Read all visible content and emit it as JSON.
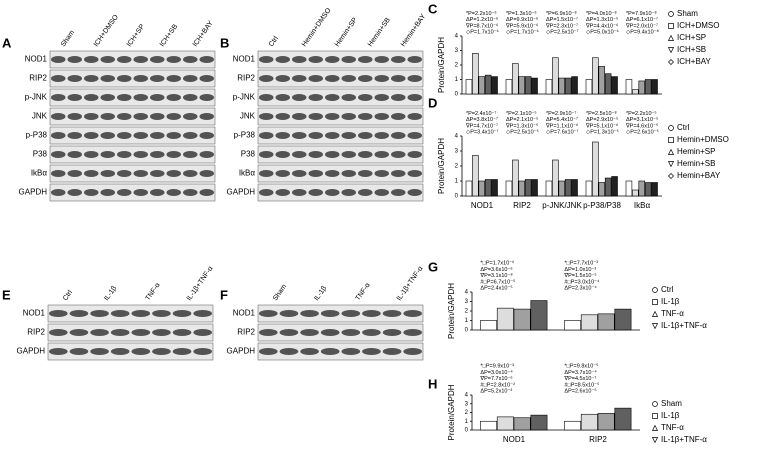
{
  "blots": [
    {
      "panel_label": "A",
      "lanes": [
        "Sham",
        "ICH+DMSO",
        "ICH+SP",
        "ICH+SB",
        "ICH+BAY"
      ],
      "rows": [
        "NOD1",
        "RIP2",
        "p-JNK",
        "JNK",
        "p-P38",
        "P38",
        "IkBα",
        "GAPDH"
      ]
    },
    {
      "panel_label": "B",
      "lanes": [
        "Ctrl",
        "Hemin+DMSO",
        "Hemin+SP",
        "Hemin+SB",
        "Hemin+BAY"
      ],
      "rows": [
        "NOD1",
        "RIP2",
        "p-JNK",
        "JNK",
        "p-P38",
        "P38",
        "IkBα",
        "GAPDH"
      ]
    },
    {
      "panel_label": "E",
      "lanes": [
        "Ctrl",
        "IL-1β",
        "TNF-α",
        "IL-1β+TNF-α"
      ],
      "rows": [
        "NOD1",
        "RIP2",
        "GAPDH"
      ]
    },
    {
      "panel_label": "F",
      "lanes": [
        "Sham",
        "IL-1β",
        "TNF-α",
        "IL-1β+TNF-α"
      ],
      "rows": [
        "NOD1",
        "RIP2",
        "GAPDH"
      ]
    }
  ],
  "chart_data": [
    {
      "type": "bar",
      "panel_label": "C",
      "y_label": "Protein/GAPDH",
      "categories": [
        null,
        null,
        null,
        null,
        null
      ],
      "ylim": [
        0,
        4
      ],
      "yticks": [
        0,
        1,
        2,
        3,
        4
      ],
      "series": [
        {
          "name": "Sham",
          "color": "#ffffff",
          "values": [
            1,
            1,
            1,
            1,
            1
          ]
        },
        {
          "name": "ICH+DMSO",
          "color": "#dddddd",
          "values": [
            2.8,
            2.1,
            2.5,
            2.5,
            0.3
          ]
        },
        {
          "name": "ICH+SP",
          "color": "#a0a0a0",
          "values": [
            1.2,
            1.2,
            1.1,
            1.9,
            0.9
          ]
        },
        {
          "name": "ICH+SB",
          "color": "#606060",
          "values": [
            1.3,
            1.2,
            1.1,
            1.4,
            1.0
          ]
        },
        {
          "name": "ICH+BAY",
          "color": "#202020",
          "values": [
            1.2,
            1.1,
            1.2,
            1.2,
            1.0
          ]
        }
      ],
      "annotations": [
        [
          "*P=2.2x10⁻⁶",
          "ΔP=1.2x10⁻⁶",
          "∇P=8.7x10⁻⁶",
          "◇P=1.7x10⁻⁶"
        ],
        [
          "*P=1.3x10⁻⁶",
          "ΔP=9.9x10⁻⁶",
          "∇P=5.9x10⁻⁶",
          "◇P=1.7x10⁻⁶"
        ],
        [
          "*P=6.9x10⁻⁸",
          "ΔP=1.5x10⁻⁷",
          "∇P=2.3x10⁻⁷",
          "◇P=2.5x10⁻⁷"
        ],
        [
          "*P=4.0x10⁻⁸",
          "ΔP=1.3x10⁻⁵",
          "∇P=4.4x10⁻⁶",
          "◇P=5.0x10⁻⁶"
        ],
        [
          "*P=7.9x10⁻⁸",
          "ΔP=6.1x10⁻⁷",
          "∇P=2.0x10⁻⁷",
          "◇P=9.4x10⁻⁸"
        ]
      ]
    },
    {
      "type": "bar",
      "panel_label": "D",
      "y_label": "Protein/GAPDH",
      "categories": [
        "NOD1",
        "RIP2",
        "p-JNK/JNK",
        "p-P38/P38",
        "IkBα"
      ],
      "ylim": [
        0,
        4
      ],
      "yticks": [
        0,
        1,
        2,
        3,
        4
      ],
      "series": [
        {
          "name": "Ctrl",
          "color": "#ffffff",
          "values": [
            1,
            1,
            1,
            1,
            1
          ]
        },
        {
          "name": "Hemin+DMSO",
          "color": "#dddddd",
          "values": [
            2.7,
            2.4,
            2.4,
            3.6,
            0.4
          ]
        },
        {
          "name": "Hemin+SP",
          "color": "#a0a0a0",
          "values": [
            1.0,
            1.0,
            1.0,
            0.9,
            1.0
          ]
        },
        {
          "name": "Hemin+SB",
          "color": "#606060",
          "values": [
            1.1,
            1.1,
            1.1,
            1.2,
            0.9
          ]
        },
        {
          "name": "Hemin+BAY",
          "color": "#202020",
          "values": [
            1.1,
            1.1,
            1.1,
            1.3,
            0.9
          ]
        }
      ],
      "annotations": [
        [
          "*P=2.4x10⁻⁷",
          "ΔP=3.8x10⁻⁷",
          "∇P=4.7x10⁻⁷",
          "◇P=3.4x10⁻⁷"
        ],
        [
          "*P=2.1x10⁻⁵",
          "ΔP=2.1x10⁻⁵",
          "∇P=1.3x10⁻⁵",
          "◇P=2.5x10⁻⁵"
        ],
        [
          "*P=2.9x10⁻⁷",
          "ΔP=5.4x10⁻⁷",
          "∇P=1.1x10⁻⁶",
          "◇P=7.6x10⁻⁷"
        ],
        [
          "*P=2.5x10⁻⁸",
          "ΔP=2.9x10⁻⁵",
          "∇P=5.1x10⁻⁶",
          "◇P=1.3x10⁻⁵"
        ],
        [
          "*P=2.2x10⁻⁵",
          "ΔP=3.1x10⁻⁵",
          "∇P=4.6x10⁻⁵",
          "◇P=2.6x10⁻⁵"
        ]
      ]
    },
    {
      "type": "bar",
      "panel_label": "G",
      "y_label": "Protein/GAPDH",
      "categories": [
        null,
        null
      ],
      "ylim": [
        0,
        4
      ],
      "yticks": [
        0,
        1,
        2,
        3,
        4
      ],
      "series": [
        {
          "name": "Ctrl",
          "color": "#ffffff",
          "values": [
            1,
            1
          ]
        },
        {
          "name": "IL-1β",
          "color": "#dddddd",
          "values": [
            2.3,
            1.6
          ]
        },
        {
          "name": "TNF-α",
          "color": "#a0a0a0",
          "values": [
            2.2,
            1.7
          ]
        },
        {
          "name": "IL-1β+TNF-α",
          "color": "#606060",
          "values": [
            3.1,
            2.2
          ]
        }
      ],
      "annotations": [
        [
          "*□P=1.7x10⁻⁶",
          "ΔP=3.6x10⁻⁶",
          "∇P=3.1x10⁻⁸",
          "#□P=6.7x10⁻⁵",
          "ΔP=2.4x10⁻⁵"
        ],
        [
          "*□P=7.7x10⁻³",
          "ΔP=1.0x10⁻³",
          "∇P=1.5x10⁻⁵",
          "#□P=3.0x10⁻⁴",
          "ΔP=2.3x10⁻⁴"
        ]
      ]
    },
    {
      "type": "bar",
      "panel_label": "H",
      "y_label": "Protein/GAPDH",
      "categories": [
        "NOD1",
        "RIP2"
      ],
      "ylim": [
        0,
        4
      ],
      "yticks": [
        0,
        1,
        2,
        3,
        4
      ],
      "series": [
        {
          "name": "Sham",
          "color": "#ffffff",
          "values": [
            1,
            1
          ]
        },
        {
          "name": "IL-1β",
          "color": "#dddddd",
          "values": [
            1.5,
            1.8
          ]
        },
        {
          "name": "TNF-α",
          "color": "#a0a0a0",
          "values": [
            1.4,
            1.9
          ]
        },
        {
          "name": "IL-1β+TNF-α",
          "color": "#606060",
          "values": [
            1.7,
            2.5
          ]
        }
      ],
      "annotations": [
        [
          "*□P=9.9x10⁻³",
          "ΔP=3.0x10⁻⁴",
          "∇P=7.7x10⁻⁶",
          "#□P=2.8x10⁻²",
          "ΔP=5.2x10⁻³"
        ],
        [
          "*□P=9.8x10⁻⁵",
          "ΔP=3.7x10⁻⁴",
          "∇P=4.5x10⁻⁷",
          "#□P=8.5x10⁻⁵",
          "ΔP=2.6x10⁻⁵"
        ]
      ]
    }
  ]
}
